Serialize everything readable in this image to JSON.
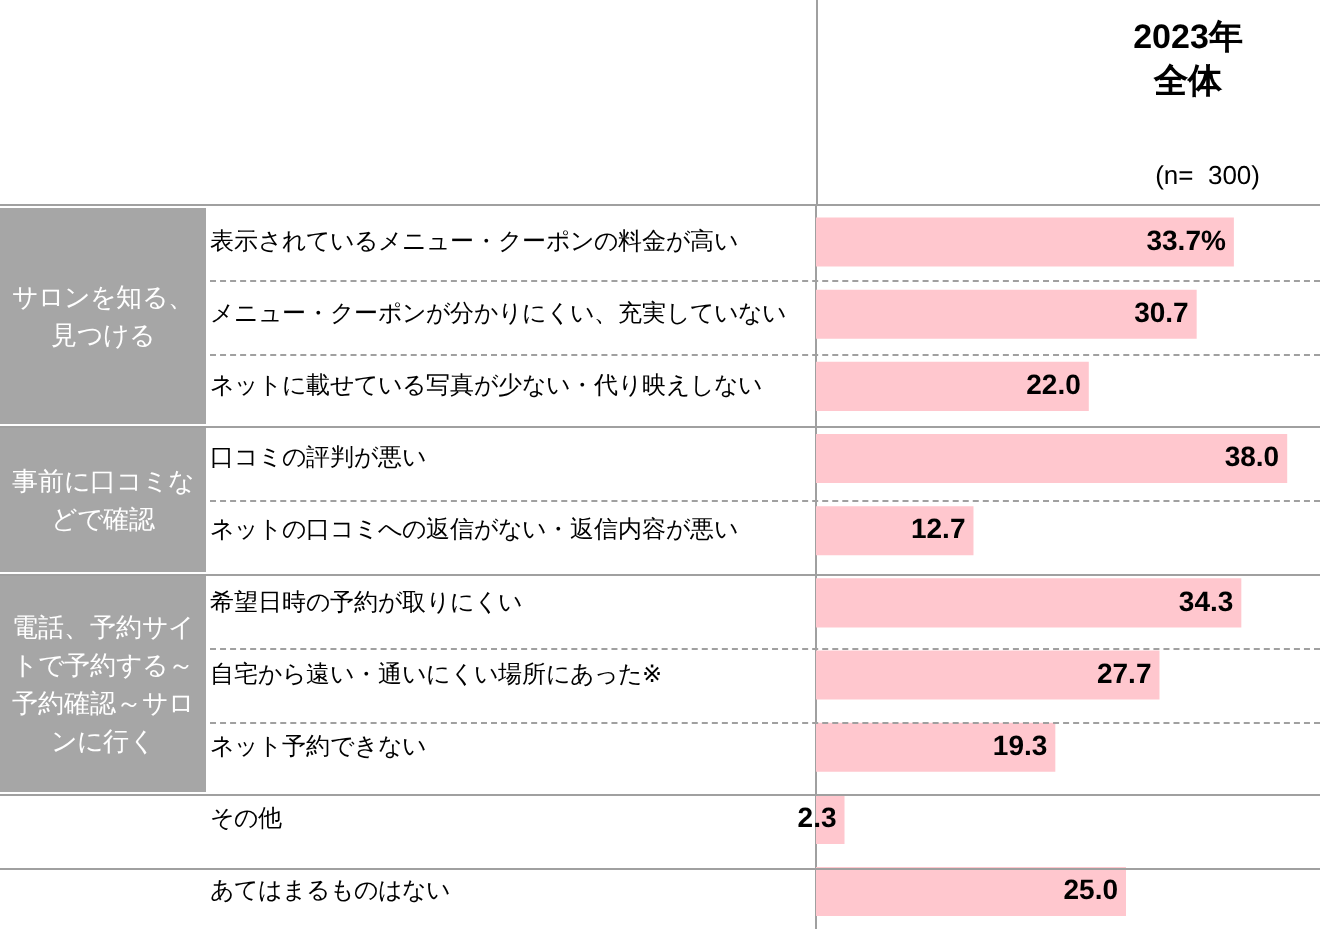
{
  "chart_data": {
    "type": "bar",
    "orientation": "horizontal",
    "title": "2023年全体",
    "subtitle": "(n=  300)",
    "categories": [
      "表示されているメニュー・クーポンの料金が高い",
      "メニュー・クーポンが分かりにくい、充実していない",
      "ネットに載せている写真が少ない・代り映えしない",
      "口コミの評判が悪い",
      "ネットの口コミへの返信がない・返信内容が悪い",
      "希望日時の予約が取りにくい",
      "自宅から遠い・通いにくい場所にあった※",
      "ネット予約できない",
      "その他",
      "あてはまるものはない"
    ],
    "series": [
      {
        "color": "#ffc7ce",
        "values": [
          33.7,
          30.7,
          22.0,
          38.0,
          12.7,
          34.3,
          27.7,
          19.3,
          2.3,
          25.0
        ],
        "value_labels": [
          "33.7%",
          "30.7",
          "22.0",
          "38.0",
          "12.7",
          "34.3",
          "27.7",
          "19.3",
          "2.3",
          "25.0"
        ]
      }
    ],
    "annotations": [
      "サロンを知る、見つける",
      "事前に口コミなどで確認",
      "電話、予約サイトで予約する～予約確認～サロンに行く"
    ],
    "legend": false,
    "grid": false
  }
}
